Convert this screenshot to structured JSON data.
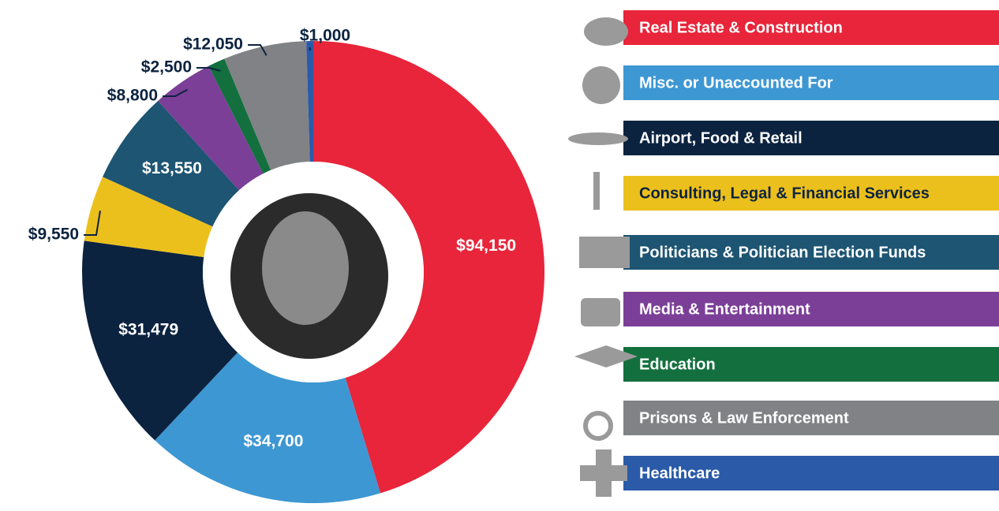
{
  "chart_data": {
    "type": "pie",
    "donut": true,
    "categories": [
      "Real Estate & Construction",
      "Misc. or Unaccounted For",
      "Airport, Food & Retail",
      "Consulting, Legal & Financial Services",
      "Politicians & Politician Election Funds",
      "Media & Entertainment",
      "Education",
      "Prisons & Law Enforcement",
      "Healthcare"
    ],
    "values": [
      94150,
      34700,
      31479,
      9550,
      13550,
      8800,
      2500,
      12050,
      1000
    ],
    "value_labels": [
      "$94,150",
      "$34,700",
      "$31,479",
      "$9,550",
      "$13,550",
      "$8,800",
      "$2,500",
      "$12,050",
      "$1,000"
    ],
    "colors": [
      "#e8253a",
      "#3d97d3",
      "#0c2340",
      "#ecc01c",
      "#1d5573",
      "#7b3f98",
      "#13703e",
      "#808285",
      "#2a5aa8"
    ]
  }
}
